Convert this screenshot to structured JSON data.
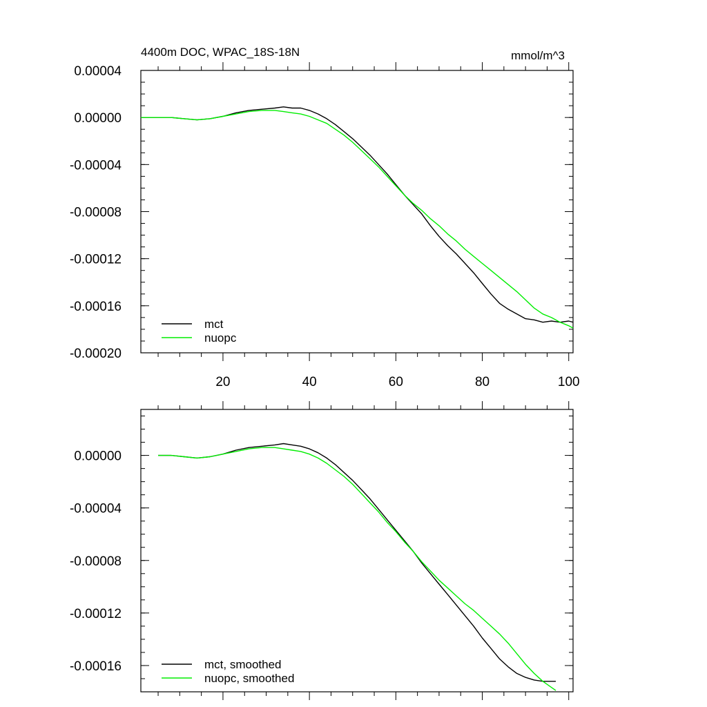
{
  "chart_data": [
    {
      "type": "line",
      "title": "4400m DOC, WPAC_18S-18N",
      "units": "mmol/m^3",
      "xlim": [
        1,
        101
      ],
      "ylim": [
        -0.0002,
        4e-05
      ],
      "xticks": [
        20,
        40,
        60,
        80,
        100
      ],
      "xtick_labels": [
        "20",
        "40",
        "60",
        "80",
        "100"
      ],
      "yticks": [
        4e-05,
        0,
        -4e-05,
        -8e-05,
        -0.00012,
        -0.00016,
        -0.0002
      ],
      "ytick_labels": [
        "0.00004",
        "0.00000",
        "-0.00004",
        "-0.00008",
        "-0.00012",
        "-0.00016",
        "-0.00020"
      ],
      "legend_position": "bottom-left",
      "series": [
        {
          "name": "mct",
          "color": "#000000",
          "x": [
            1,
            5,
            8,
            11,
            14,
            17,
            20,
            23,
            26,
            29,
            32,
            34,
            36,
            38,
            40,
            42,
            44,
            46,
            48,
            50,
            52,
            54,
            56,
            58,
            60,
            62,
            64,
            66,
            68,
            70,
            72,
            74,
            76,
            78,
            80,
            82,
            84,
            86,
            88,
            90,
            92,
            94,
            96,
            98,
            100,
            101
          ],
          "values": [
            0,
            0,
            0,
            -1e-06,
            -2e-06,
            -1e-06,
            1e-06,
            4e-06,
            6e-06,
            7e-06,
            8e-06,
            9e-06,
            8e-06,
            8e-06,
            6e-06,
            3e-06,
            -1e-06,
            -6e-06,
            -1.2e-05,
            -1.8e-05,
            -2.5e-05,
            -3.2e-05,
            -4e-05,
            -4.8e-05,
            -5.7e-05,
            -6.6e-05,
            -7.4e-05,
            -8.2e-05,
            -9.2e-05,
            -0.000101,
            -0.000109,
            -0.000116,
            -0.000124,
            -0.000132,
            -0.000141,
            -0.00015,
            -0.000158,
            -0.000163,
            -0.000167,
            -0.000171,
            -0.000172,
            -0.000174,
            -0.000173,
            -0.000174,
            -0.000173,
            -0.000174
          ]
        },
        {
          "name": "nuopc",
          "color": "#00ee00",
          "x": [
            1,
            5,
            8,
            11,
            14,
            17,
            20,
            23,
            26,
            29,
            32,
            34,
            36,
            38,
            40,
            42,
            44,
            46,
            48,
            50,
            52,
            54,
            56,
            58,
            60,
            62,
            64,
            66,
            68,
            70,
            72,
            74,
            76,
            78,
            80,
            82,
            84,
            86,
            88,
            90,
            92,
            94,
            96,
            98,
            100,
            101
          ],
          "values": [
            0,
            0,
            0,
            -1e-06,
            -2e-06,
            -1e-06,
            1e-06,
            3e-06,
            5e-06,
            6e-06,
            6e-06,
            5e-06,
            4e-06,
            3e-06,
            1e-06,
            -2e-06,
            -5e-06,
            -1e-05,
            -1.5e-05,
            -2.1e-05,
            -2.8e-05,
            -3.5e-05,
            -4.2e-05,
            -5e-05,
            -5.8e-05,
            -6.6e-05,
            -7.3e-05,
            -7.9e-05,
            -8.6e-05,
            -9.2e-05,
            -9.9e-05,
            -0.000105,
            -0.000112,
            -0.000118,
            -0.000124,
            -0.00013,
            -0.000136,
            -0.000142,
            -0.000148,
            -0.000155,
            -0.000162,
            -0.000167,
            -0.00017,
            -0.000174,
            -0.000177,
            -0.000179
          ]
        }
      ]
    },
    {
      "type": "line",
      "title": "",
      "xlim": [
        1,
        101
      ],
      "ylim": [
        -0.00018,
        3.5e-05
      ],
      "xticks": [
        20,
        40,
        60,
        80,
        100
      ],
      "xtick_labels": [],
      "yticks": [
        0,
        -4e-05,
        -8e-05,
        -0.00012,
        -0.00016
      ],
      "ytick_labels": [
        "0.00000",
        "-0.00004",
        "-0.00008",
        "-0.00012",
        "-0.00016"
      ],
      "legend_position": "bottom-left",
      "series": [
        {
          "name": "mct, smoothed",
          "color": "#000000",
          "x": [
            5,
            8,
            11,
            14,
            17,
            20,
            23,
            26,
            29,
            32,
            34,
            36,
            38,
            40,
            42,
            44,
            46,
            48,
            50,
            52,
            54,
            56,
            58,
            60,
            62,
            64,
            66,
            68,
            70,
            72,
            74,
            76,
            78,
            80,
            82,
            84,
            86,
            88,
            90,
            92,
            94,
            97
          ],
          "values": [
            0,
            0,
            -1e-06,
            -2e-06,
            -1e-06,
            1e-06,
            4e-06,
            6e-06,
            7e-06,
            8e-06,
            9e-06,
            8e-06,
            7e-06,
            5e-06,
            2e-06,
            -2e-06,
            -7e-06,
            -1.3e-05,
            -1.9e-05,
            -2.6e-05,
            -3.3e-05,
            -4.1e-05,
            -4.9e-05,
            -5.7e-05,
            -6.5e-05,
            -7.3e-05,
            -8.2e-05,
            -9e-05,
            -9.8e-05,
            -0.000106,
            -0.000114,
            -0.000122,
            -0.00013,
            -0.000139,
            -0.000147,
            -0.000155,
            -0.000161,
            -0.000166,
            -0.000169,
            -0.000171,
            -0.000172,
            -0.000172
          ]
        },
        {
          "name": "nuopc, smoothed",
          "color": "#00ee00",
          "x": [
            5,
            8,
            11,
            14,
            17,
            20,
            23,
            26,
            29,
            32,
            34,
            36,
            38,
            40,
            42,
            44,
            46,
            48,
            50,
            52,
            54,
            56,
            58,
            60,
            62,
            64,
            66,
            68,
            70,
            72,
            74,
            76,
            78,
            80,
            82,
            84,
            86,
            88,
            90,
            92,
            94,
            97
          ],
          "values": [
            0,
            0,
            -1e-06,
            -2e-06,
            -1e-06,
            1e-06,
            3e-06,
            5e-06,
            6e-06,
            6e-06,
            5e-06,
            4e-06,
            3e-06,
            1e-06,
            -2e-06,
            -6e-06,
            -1.1e-05,
            -1.6e-05,
            -2.2e-05,
            -2.9e-05,
            -3.6e-05,
            -4.3e-05,
            -5.1e-05,
            -5.8e-05,
            -6.6e-05,
            -7.3e-05,
            -8.1e-05,
            -8.8e-05,
            -9.5e-05,
            -0.000101,
            -0.000107,
            -0.000113,
            -0.000118,
            -0.000124,
            -0.00013,
            -0.000136,
            -0.000143,
            -0.000151,
            -0.000159,
            -0.000166,
            -0.000172,
            -0.000179
          ]
        }
      ]
    }
  ]
}
